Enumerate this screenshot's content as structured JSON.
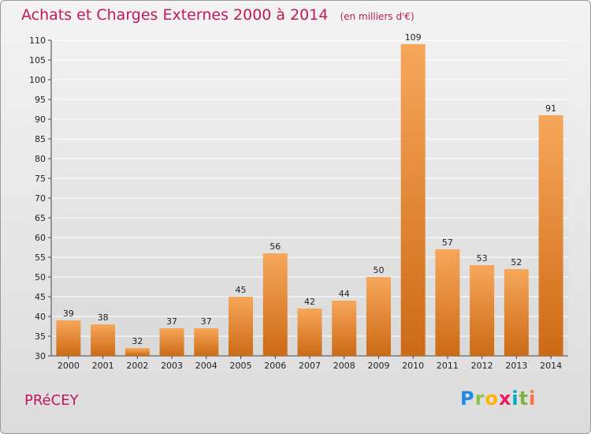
{
  "header": {
    "title": "Achats et Charges Externes 2000 à 2014",
    "subtitle": "(en milliers d'€)"
  },
  "footer": {
    "place": "PRéCEY",
    "brand": {
      "text": "Proxiti",
      "letters": [
        {
          "char": "P",
          "color": "#1e88e5"
        },
        {
          "char": "r",
          "color": "#8bc34a"
        },
        {
          "char": "o",
          "color": "#ffb300"
        },
        {
          "char": "x",
          "color": "#e91e63"
        },
        {
          "char": "i",
          "color": "#00acc1"
        },
        {
          "char": "t",
          "color": "#7cb342"
        },
        {
          "char": "i",
          "color": "#ff7043"
        }
      ]
    }
  },
  "colors": {
    "title": "#c2185b",
    "bar_top": "#f7a75a",
    "bar_bottom": "#cc6a16",
    "grid": "#ffffff",
    "plot_bg_top": "#f1f1f1",
    "plot_bg_bottom": "#d9d9d9"
  },
  "chart_data": {
    "type": "bar",
    "categories": [
      "2000",
      "2001",
      "2002",
      "2003",
      "2004",
      "2005",
      "2006",
      "2007",
      "2008",
      "2009",
      "2010",
      "2011",
      "2012",
      "2013",
      "2014"
    ],
    "values": [
      39,
      38,
      32,
      37,
      37,
      45,
      56,
      42,
      44,
      50,
      109,
      57,
      53,
      52,
      91
    ],
    "ylim": [
      30,
      110
    ],
    "yticks": [
      30,
      35,
      40,
      45,
      50,
      55,
      60,
      65,
      70,
      75,
      80,
      85,
      90,
      95,
      100,
      105,
      110
    ],
    "grid": true,
    "xlabel": "",
    "ylabel": ""
  }
}
